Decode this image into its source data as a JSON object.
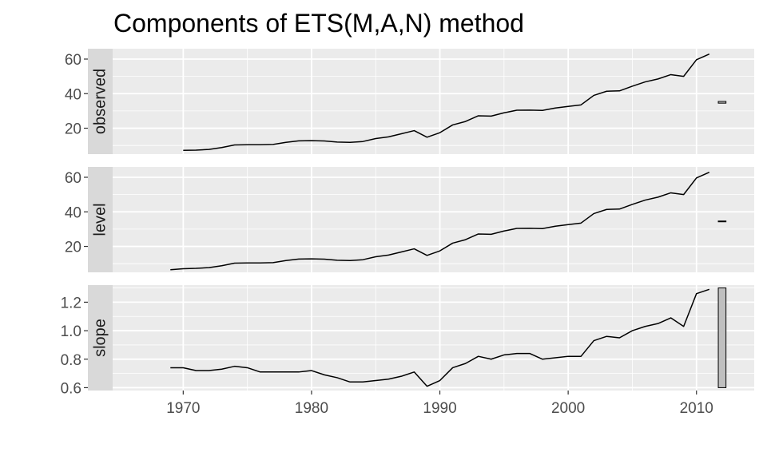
{
  "chart_data": {
    "type": "line",
    "title": "Components of ETS(M,A,N) method",
    "xlabel": "",
    "ylabel": "",
    "xlim": [
      1964.5,
      2014.5
    ],
    "x_ticks": [
      1970,
      1980,
      1990,
      2000,
      2010
    ],
    "x_tick_labels": [
      "1970",
      "1980",
      "1990",
      "2000",
      "2010"
    ],
    "grid": true,
    "facet": "vertical",
    "panels": [
      {
        "name": "observed",
        "ylim": [
          5,
          66
        ],
        "y_ticks": [
          20,
          40,
          60
        ],
        "y_tick_labels": [
          "20",
          "40",
          "60"
        ],
        "x": [
          1970,
          1971,
          1972,
          1973,
          1974,
          1975,
          1976,
          1977,
          1978,
          1979,
          1980,
          1981,
          1982,
          1983,
          1984,
          1985,
          1986,
          1987,
          1988,
          1989,
          1990,
          1991,
          1992,
          1993,
          1994,
          1995,
          1996,
          1997,
          1998,
          1999,
          2000,
          2001,
          2002,
          2003,
          2004,
          2005,
          2006,
          2007,
          2008,
          2009,
          2010,
          2011
        ],
        "values": [
          7.2,
          7.3,
          7.7,
          8.8,
          10.3,
          10.4,
          10.4,
          10.6,
          11.8,
          12.7,
          12.8,
          12.6,
          12.0,
          11.8,
          12.3,
          14.0,
          15.0,
          16.8,
          18.6,
          14.8,
          17.4,
          21.9,
          23.9,
          27.2,
          27.0,
          28.9,
          30.4,
          30.5,
          30.3,
          31.7,
          32.6,
          33.5,
          39.0,
          41.4,
          41.6,
          44.3,
          46.8,
          48.5,
          51.0,
          50.0,
          59.6,
          62.9
        ],
        "range_bar": [
          34.5,
          35.5
        ]
      },
      {
        "name": "level",
        "ylim": [
          5,
          66
        ],
        "y_ticks": [
          20,
          40,
          60
        ],
        "y_tick_labels": [
          "20",
          "40",
          "60"
        ],
        "x": [
          1969,
          1970,
          1971,
          1972,
          1973,
          1974,
          1975,
          1976,
          1977,
          1978,
          1979,
          1980,
          1981,
          1982,
          1983,
          1984,
          1985,
          1986,
          1987,
          1988,
          1989,
          1990,
          1991,
          1992,
          1993,
          1994,
          1995,
          1996,
          1997,
          1998,
          1999,
          2000,
          2001,
          2002,
          2003,
          2004,
          2005,
          2006,
          2007,
          2008,
          2009,
          2010,
          2011
        ],
        "values": [
          6.5,
          7.1,
          7.3,
          7.7,
          8.8,
          10.3,
          10.4,
          10.4,
          10.6,
          11.8,
          12.7,
          12.8,
          12.6,
          12.0,
          11.8,
          12.3,
          14.0,
          15.0,
          16.8,
          18.6,
          14.8,
          17.4,
          21.9,
          23.9,
          27.2,
          27.0,
          28.9,
          30.4,
          30.5,
          30.3,
          31.7,
          32.6,
          33.5,
          39.0,
          41.4,
          41.6,
          44.3,
          46.8,
          48.5,
          51.0,
          50.0,
          59.6,
          62.9
        ],
        "range_bar": [
          34.7,
          34.7
        ]
      },
      {
        "name": "slope",
        "ylim": [
          0.58,
          1.32
        ],
        "y_ticks": [
          0.6,
          0.8,
          1.0,
          1.2
        ],
        "y_tick_labels": [
          "0.6",
          "0.8",
          "1.0",
          "1.2"
        ],
        "x": [
          1969,
          1970,
          1971,
          1972,
          1973,
          1974,
          1975,
          1976,
          1977,
          1978,
          1979,
          1980,
          1981,
          1982,
          1983,
          1984,
          1985,
          1986,
          1987,
          1988,
          1989,
          1990,
          1991,
          1992,
          1993,
          1994,
          1995,
          1996,
          1997,
          1998,
          1999,
          2000,
          2001,
          2002,
          2003,
          2004,
          2005,
          2006,
          2007,
          2008,
          2009,
          2010,
          2011
        ],
        "values": [
          0.74,
          0.74,
          0.72,
          0.72,
          0.73,
          0.75,
          0.74,
          0.71,
          0.71,
          0.71,
          0.71,
          0.72,
          0.69,
          0.67,
          0.64,
          0.64,
          0.65,
          0.66,
          0.68,
          0.71,
          0.61,
          0.65,
          0.74,
          0.77,
          0.82,
          0.8,
          0.83,
          0.84,
          0.84,
          0.8,
          0.81,
          0.82,
          0.82,
          0.93,
          0.96,
          0.95,
          1.0,
          1.03,
          1.05,
          1.09,
          1.03,
          1.26,
          1.29
        ],
        "range_bar": [
          0.6,
          1.3
        ]
      }
    ],
    "colors": {
      "panel_bg": "#ebebeb",
      "grid_major": "#ffffff",
      "strip_bg": "#d9d9d9",
      "line": "#000000",
      "range_bar_fill": "#bfbfbf",
      "tick_text": "#4d4d4d"
    }
  }
}
